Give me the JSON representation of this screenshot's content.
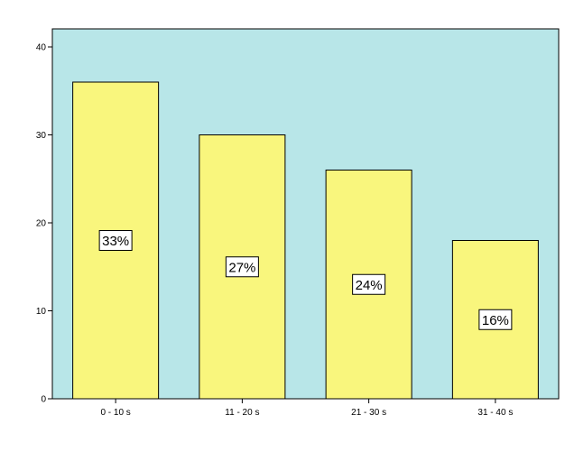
{
  "chart_data": {
    "type": "bar",
    "title": "",
    "xlabel": "",
    "ylabel": "",
    "categories": [
      "0 - 10 s",
      "11 - 20 s",
      "21 - 30 s",
      "31 - 40 s"
    ],
    "values": [
      36,
      30,
      26,
      18
    ],
    "data_labels": [
      "33%",
      "27%",
      "24%",
      "16%"
    ],
    "ylim": [
      0,
      40
    ],
    "yticks": [
      0,
      10,
      20,
      30,
      40
    ],
    "grid": false,
    "legend": "none",
    "colors": {
      "plot_background": "#B8E6E8",
      "bar_fill": "#F9F67D",
      "bar_stroke": "#000000",
      "label_box_fill": "#FFFFFF"
    }
  }
}
